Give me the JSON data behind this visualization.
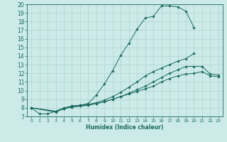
{
  "xlabel": "Humidex (Indice chaleur)",
  "xlim": [
    -0.5,
    23.5
  ],
  "ylim": [
    7,
    20
  ],
  "xticks": [
    0,
    1,
    2,
    3,
    4,
    5,
    6,
    7,
    8,
    9,
    10,
    11,
    12,
    13,
    14,
    15,
    16,
    17,
    18,
    19,
    20,
    21,
    22,
    23
  ],
  "yticks": [
    7,
    8,
    9,
    10,
    11,
    12,
    13,
    14,
    15,
    16,
    17,
    18,
    19,
    20
  ],
  "bg_color": "#cceae8",
  "line_color": "#1a6b60",
  "grid_color": "#aed4d0",
  "lines": [
    {
      "x": [
        0,
        1,
        2,
        3,
        4,
        5,
        6,
        7,
        8,
        9,
        10,
        11,
        12,
        13,
        14,
        15,
        16,
        17,
        18,
        19,
        20
      ],
      "y": [
        8.0,
        7.3,
        7.3,
        7.6,
        7.9,
        8.2,
        8.3,
        8.5,
        9.5,
        10.8,
        12.3,
        14.1,
        15.5,
        17.1,
        18.4,
        18.6,
        19.8,
        19.8,
        19.7,
        19.2,
        17.3
      ]
    },
    {
      "x": [
        0,
        3,
        4,
        5,
        6,
        7,
        8,
        9,
        10,
        11,
        12,
        13,
        14,
        15,
        16,
        17,
        18,
        19,
        20
      ],
      "y": [
        8.0,
        7.6,
        8.0,
        8.2,
        8.3,
        8.4,
        8.6,
        8.9,
        9.3,
        9.8,
        10.4,
        11.0,
        11.7,
        12.2,
        12.6,
        13.0,
        13.4,
        13.7,
        14.3
      ]
    },
    {
      "x": [
        0,
        3,
        4,
        5,
        6,
        7,
        8,
        9,
        10,
        11,
        12,
        13,
        14,
        15,
        16,
        17,
        18,
        19,
        20,
        21,
        22,
        23
      ],
      "y": [
        8.0,
        7.6,
        7.9,
        8.1,
        8.2,
        8.3,
        8.5,
        8.7,
        9.0,
        9.3,
        9.7,
        10.1,
        10.5,
        11.0,
        11.5,
        12.0,
        12.4,
        12.8,
        12.8,
        12.8,
        11.9,
        11.8
      ]
    },
    {
      "x": [
        0,
        3,
        4,
        5,
        6,
        7,
        8,
        9,
        10,
        11,
        12,
        13,
        14,
        15,
        16,
        17,
        18,
        19,
        20,
        21,
        22,
        23
      ],
      "y": [
        8.0,
        7.5,
        7.9,
        8.1,
        8.2,
        8.3,
        8.5,
        8.7,
        9.0,
        9.3,
        9.6,
        9.9,
        10.2,
        10.5,
        11.0,
        11.4,
        11.7,
        11.9,
        12.0,
        12.2,
        11.7,
        11.6
      ]
    }
  ]
}
